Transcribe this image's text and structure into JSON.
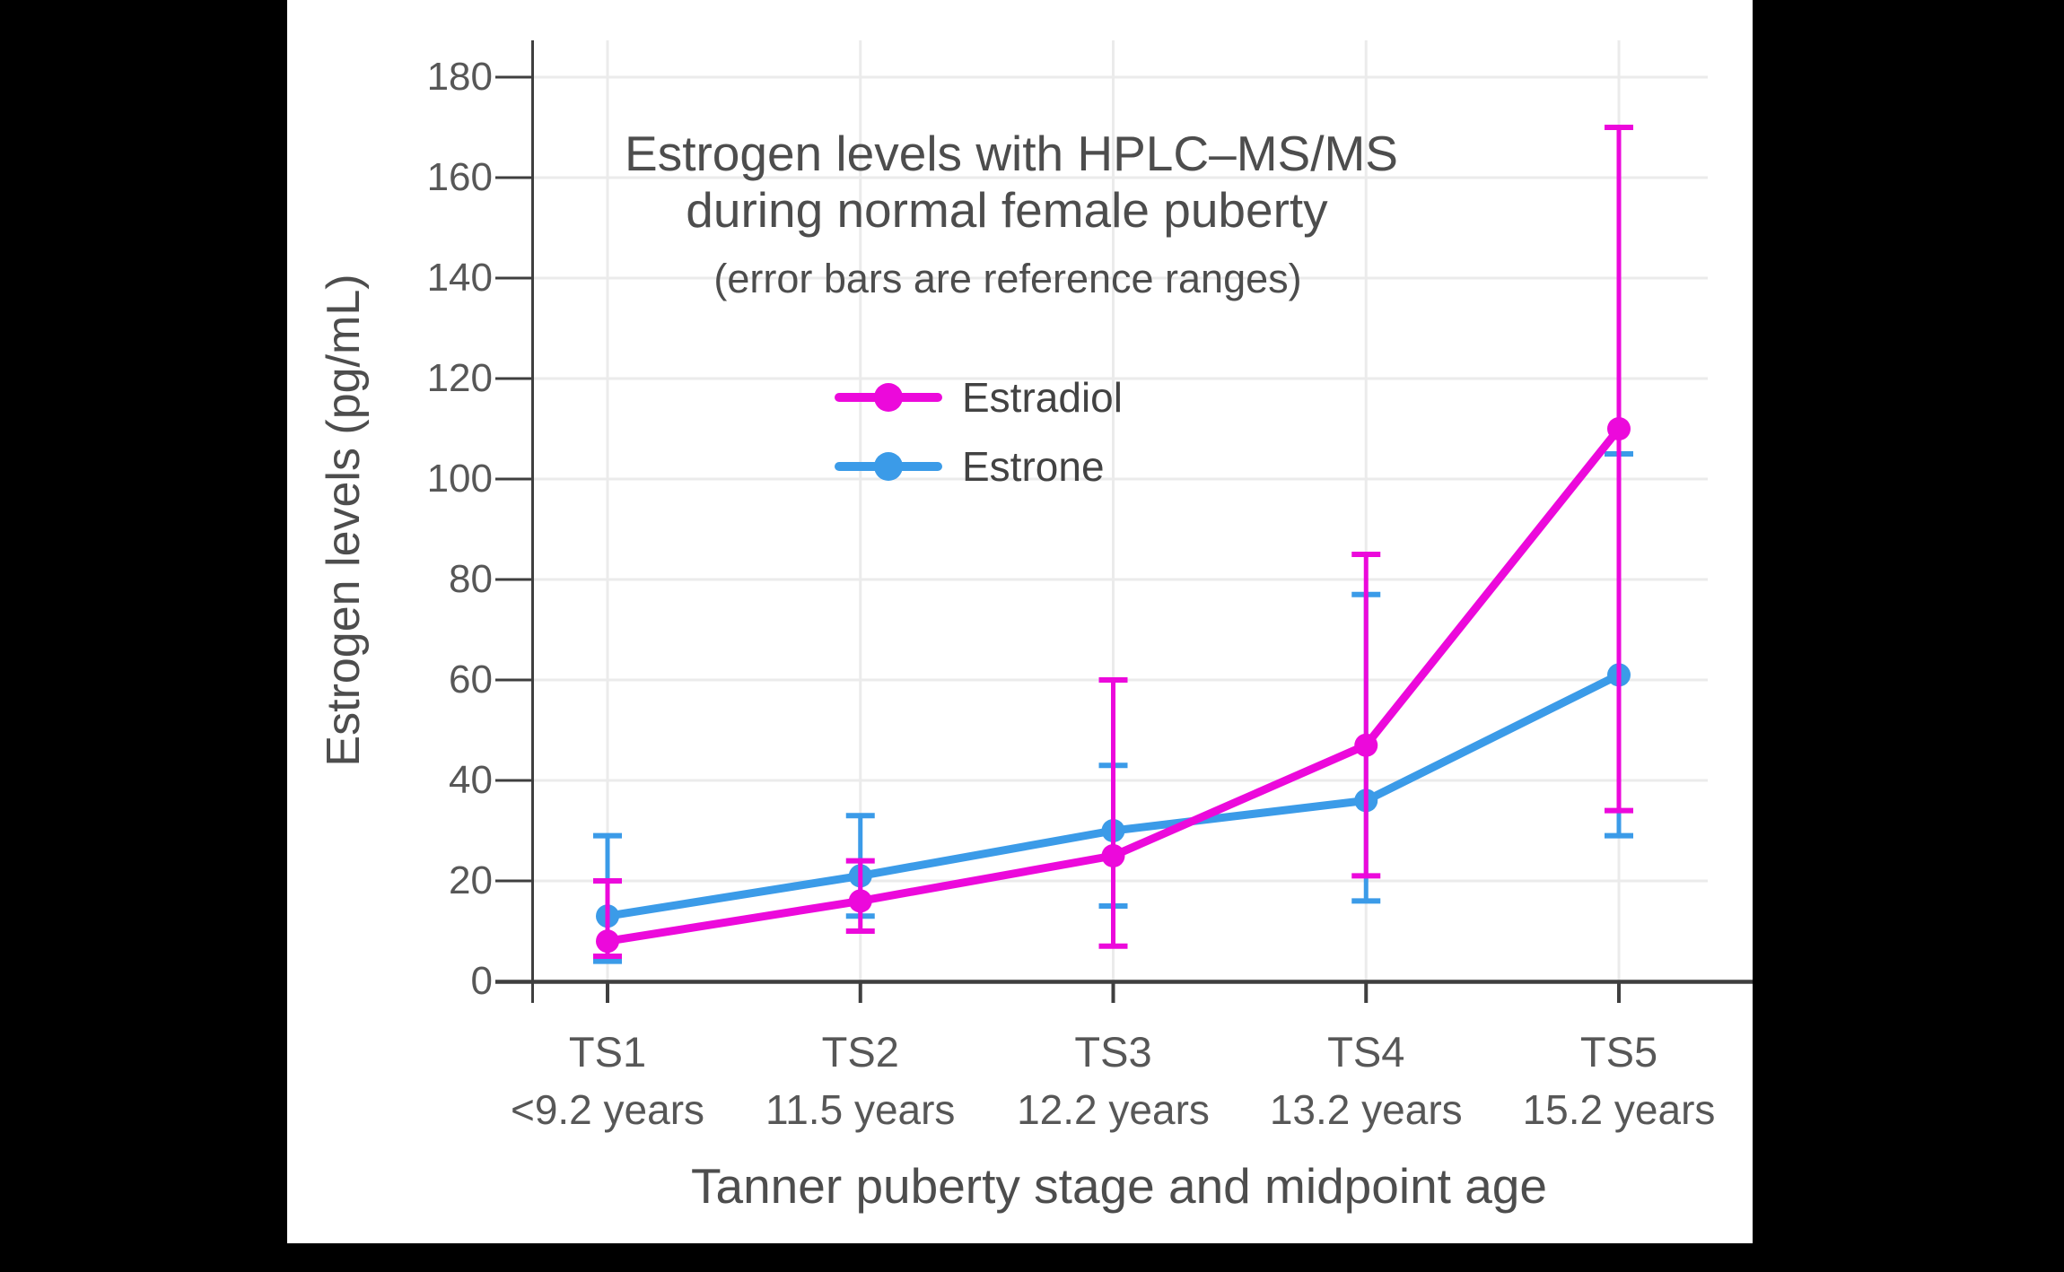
{
  "colors": {
    "background": "#000000",
    "plot_background": "#ffffff",
    "grid": "#ebebeb",
    "axis": "#3f3f3f",
    "tick_text": "#575757",
    "title_text": "#4d4d4d",
    "estradiol": "#EC09DB",
    "estrone": "#3B9BE8"
  },
  "chart_data": {
    "type": "line",
    "title_line1": "Estrogen levels with HPLC–MS/MS",
    "title_line2": "during normal female puberty",
    "subtitle": "(error bars are reference ranges)",
    "xlabel": "Tanner puberty stage and midpoint age",
    "ylabel": "Estrogen levels (pg/mL)",
    "categories": [
      "TS1",
      "TS2",
      "TS3",
      "TS4",
      "TS5"
    ],
    "category_ages": [
      "<9.2 years",
      "11.5 years",
      "12.2 years",
      "13.2 years",
      "15.2 years"
    ],
    "y_ticks": [
      0,
      20,
      40,
      60,
      80,
      100,
      120,
      140,
      160,
      180
    ],
    "ylim": [
      0,
      187
    ],
    "grid": true,
    "legend_position": "inside-upper-left",
    "series": [
      {
        "name": "Estradiol",
        "color": "#EC09DB",
        "values": [
          8,
          16,
          25,
          47,
          110
        ],
        "err_low": [
          5,
          10,
          7,
          21,
          34
        ],
        "err_high": [
          20,
          24,
          60,
          85,
          170
        ]
      },
      {
        "name": "Estrone",
        "color": "#3B9BE8",
        "values": [
          13,
          21,
          30,
          36,
          61
        ],
        "err_low": [
          4,
          13,
          15,
          16,
          29
        ],
        "err_high": [
          29,
          33,
          43,
          77,
          105
        ]
      }
    ]
  }
}
